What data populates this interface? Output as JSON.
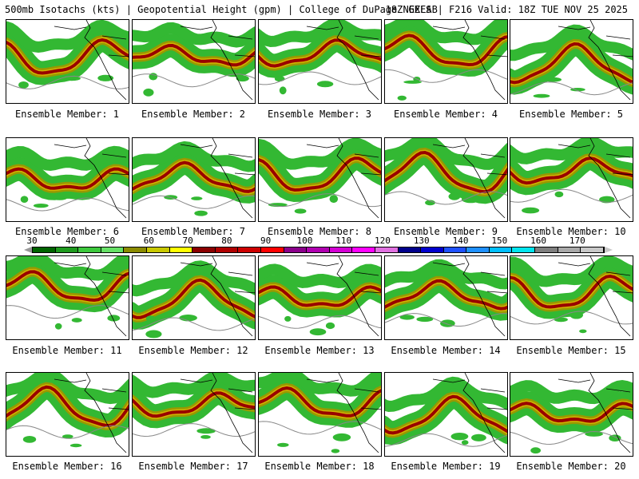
{
  "header": {
    "left": "500mb Isotachs (kts) | Geopotential Height (gpm) | College of DuPage NEXLAB",
    "right": "18Z GEFS | F216 Valid: 18Z TUE NOV 25 2025"
  },
  "panels": [
    {
      "label": "Ensemble Member: 1"
    },
    {
      "label": "Ensemble Member: 2"
    },
    {
      "label": "Ensemble Member: 3"
    },
    {
      "label": "Ensemble Member: 4"
    },
    {
      "label": "Ensemble Member: 5"
    },
    {
      "label": "Ensemble Member: 6"
    },
    {
      "label": "Ensemble Member: 7"
    },
    {
      "label": "Ensemble Member: 8"
    },
    {
      "label": "Ensemble Member: 9"
    },
    {
      "label": "Ensemble Member: 10"
    },
    {
      "label": "Ensemble Member: 11"
    },
    {
      "label": "Ensemble Member: 12"
    },
    {
      "label": "Ensemble Member: 13"
    },
    {
      "label": "Ensemble Member: 14"
    },
    {
      "label": "Ensemble Member: 15"
    },
    {
      "label": "Ensemble Member: 16"
    },
    {
      "label": "Ensemble Member: 17"
    },
    {
      "label": "Ensemble Member: 18"
    },
    {
      "label": "Ensemble Member: 19"
    },
    {
      "label": "Ensemble Member: 20"
    }
  ],
  "colorbar": {
    "labels": [
      "30",
      "40",
      "50",
      "60",
      "70",
      "80",
      "90",
      "100",
      "110",
      "120",
      "130",
      "140",
      "150",
      "160",
      "170"
    ],
    "colors": [
      "#006400",
      "#1e9a1e",
      "#3cc83c",
      "#66e066",
      "#8b8b00",
      "#c8c800",
      "#ffff00",
      "#8b0000",
      "#b00000",
      "#cd0000",
      "#ff0000",
      "#8b008b",
      "#b000b0",
      "#d400d4",
      "#ff00ff",
      "#e070e0",
      "#00008b",
      "#0000cd",
      "#1e50ff",
      "#1e90ff",
      "#00bfff",
      "#00e5ee",
      "#7f7f7f",
      "#a9a9a9",
      "#c8c8c8"
    ],
    "arrow_left_color": "#999999",
    "arrow_right_color": "#c8c8c8"
  },
  "map_colors": {
    "green": "#33b833",
    "olive": "#999900",
    "yellow": "#d2b400",
    "red": "#990000",
    "purple": "#800080",
    "contour": "#888888",
    "coast": "#000000"
  }
}
